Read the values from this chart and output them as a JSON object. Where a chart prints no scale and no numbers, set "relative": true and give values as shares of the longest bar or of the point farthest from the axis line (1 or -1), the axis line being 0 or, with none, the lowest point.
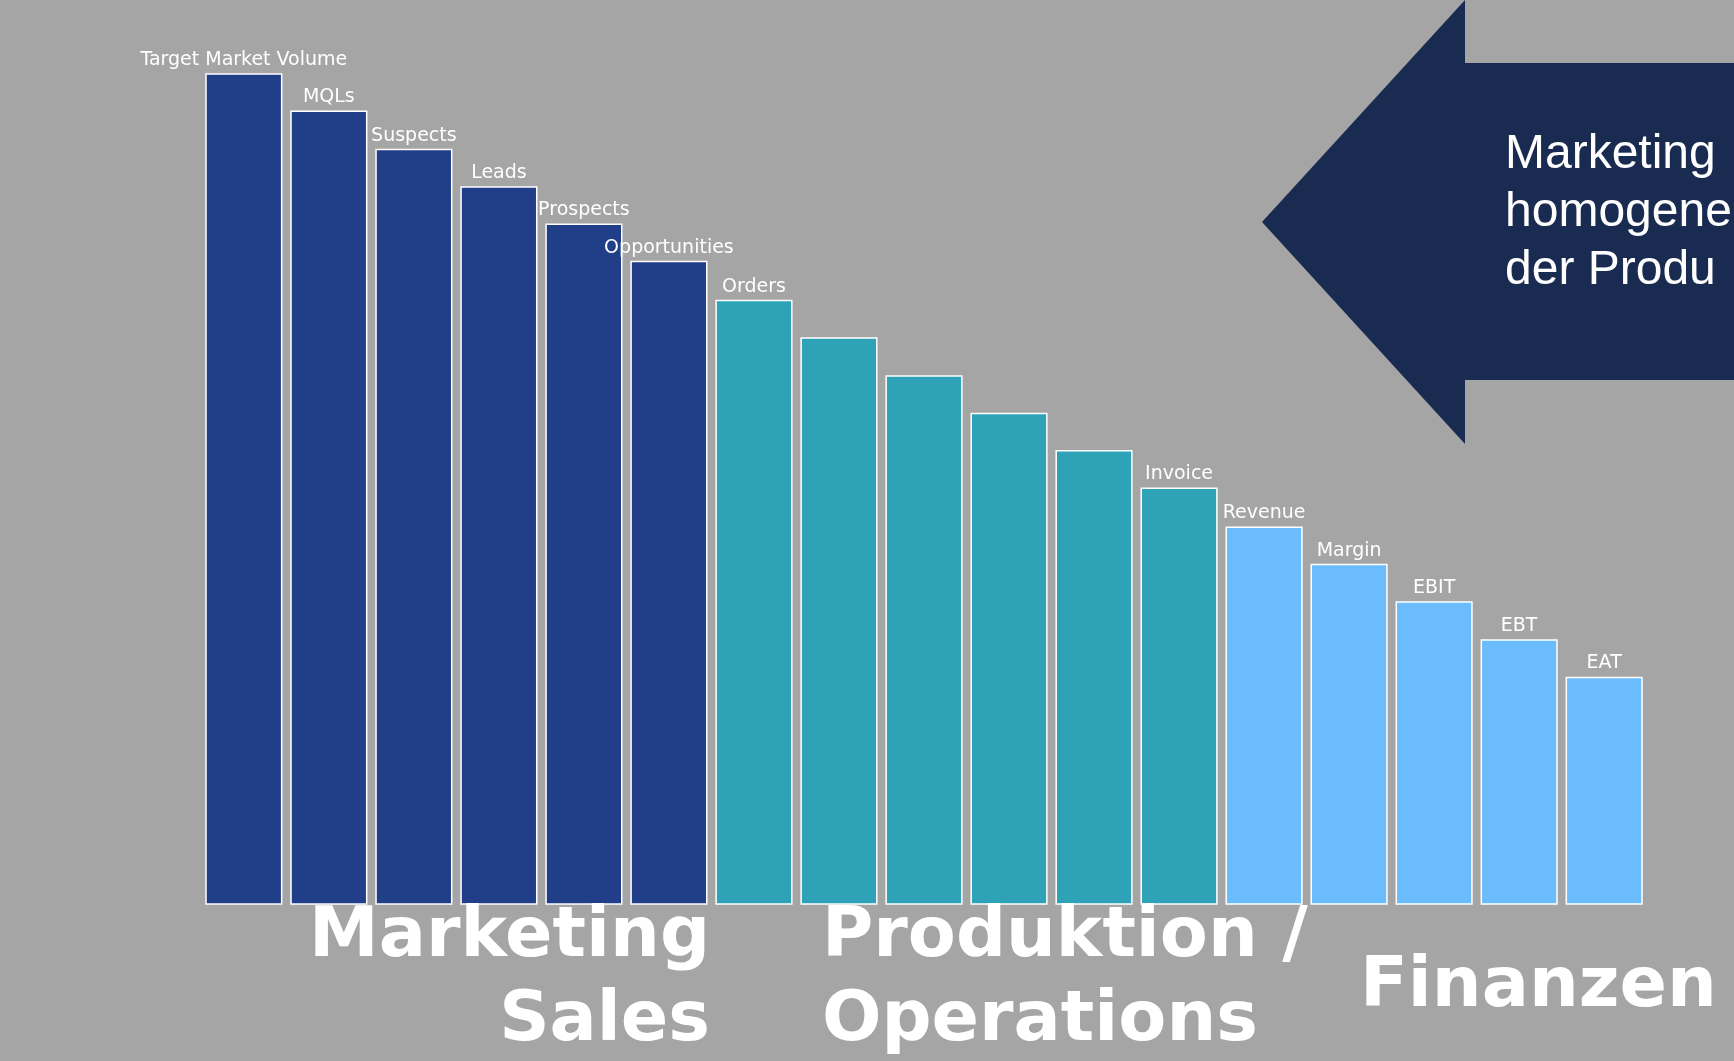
{
  "chart_data": {
    "type": "bar",
    "relative": true,
    "categories": [
      "Target Market Volume",
      "MQLs",
      "Suspects",
      "Leads",
      "Prospects",
      "Opportunities",
      "Orders",
      null,
      null,
      null,
      null,
      "Invoice",
      "Revenue",
      "Margin",
      "EBIT",
      "EBT",
      "EAT"
    ],
    "values": [
      1,
      0.955,
      0.909,
      0.864,
      0.819,
      0.774,
      0.727,
      0.682,
      0.636,
      0.591,
      0.546,
      0.501,
      0.454,
      0.409,
      0.364,
      0.318,
      0.273
    ],
    "colors": [
      "#213f88",
      "#213f88",
      "#213f88",
      "#213f88",
      "#213f88",
      "#213f88",
      "#2ea3b7",
      "#2ea3b7",
      "#2ea3b7",
      "#2ea3b7",
      "#2ea3b7",
      "#2ea3b7",
      "#6bbcfd",
      "#6bbcfd",
      "#6bbcfd",
      "#6bbcfd",
      "#6bbcfd"
    ],
    "annotations": [
      "Marketing Sales",
      "Produktion / Operations",
      "Finanzen",
      "Marketing\nhomogene\nder Produ"
    ]
  }
}
